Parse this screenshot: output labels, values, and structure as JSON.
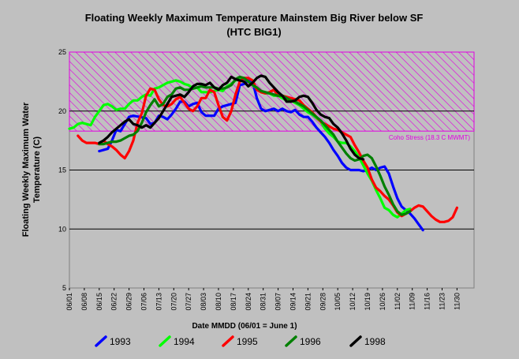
{
  "chart_data": {
    "type": "line",
    "title": "Floating Weekly Maximum Temperature Mainstem Big River below SF",
    "subtitle": "(HTC BIG1)",
    "ylabel_line1": "Floating Weekly Maximum Water",
    "ylabel_line2": "Temperature (C)",
    "xlabel": "Date MMDD (06/01 = June 1)",
    "ylim": [
      5,
      25
    ],
    "yticks": [
      "5",
      "10",
      "15",
      "20",
      "25"
    ],
    "xlim": [
      0,
      190
    ],
    "xticks": [
      "06/01",
      "06/08",
      "06/15",
      "06/22",
      "06/29",
      "07/06",
      "07/13",
      "07/20",
      "07/27",
      "08/03",
      "08/10",
      "08/17",
      "08/24",
      "08/31",
      "09/07",
      "09/14",
      "09/21",
      "09/28",
      "10/05",
      "10/12",
      "10/19",
      "10/26",
      "11/02",
      "11/09",
      "11/16",
      "11/23",
      "11/30"
    ],
    "x_unit": "days since 06/01",
    "stress_band": {
      "label": "Coho Stress (18.3 C MWMT)",
      "ymin": 18.3,
      "ymax": 25,
      "color": "#e000e0"
    },
    "reference_lines": [
      15,
      10,
      20
    ],
    "legend_position": "bottom",
    "series": [
      {
        "name": "1993",
        "color": "#0000ff",
        "x": [
          14,
          16,
          18,
          20,
          22,
          24,
          26,
          28,
          30,
          33,
          36,
          38,
          40,
          42,
          44,
          46,
          48,
          50,
          52,
          54,
          56,
          58,
          60,
          62,
          64,
          66,
          68,
          70,
          72,
          74,
          76,
          78,
          80,
          82,
          84,
          86,
          88,
          90,
          92,
          94,
          96,
          98,
          100,
          102,
          104,
          106,
          108,
          110,
          112,
          114,
          116,
          118,
          120,
          122,
          124,
          126,
          128,
          130,
          132,
          134,
          136,
          138,
          140,
          142,
          144,
          146,
          148,
          150,
          152,
          154,
          156,
          158,
          160,
          162,
          164,
          166
        ],
        "y": [
          16.6,
          16.7,
          16.8,
          17.5,
          18.4,
          18.3,
          18.9,
          19.5,
          19.6,
          19.5,
          19.4,
          18.9,
          19.0,
          19.6,
          19.5,
          19.3,
          19.7,
          20.2,
          20.8,
          20.8,
          20.4,
          20.6,
          20.7,
          19.9,
          19.6,
          19.6,
          19.6,
          20.2,
          20.4,
          20.5,
          20.6,
          20.7,
          22.2,
          22.3,
          22.6,
          22.5,
          21.1,
          20.2,
          20.0,
          20.1,
          20.2,
          20.0,
          20.2,
          20.0,
          19.9,
          20.1,
          19.7,
          19.5,
          19.5,
          19.1,
          18.6,
          18.2,
          17.8,
          17.3,
          16.7,
          16.2,
          15.6,
          15.2,
          15.0,
          15.0,
          15.0,
          14.9,
          15.0,
          15.2,
          15.0,
          15.2,
          15.3,
          14.7,
          13.6,
          12.6,
          11.9,
          11.6,
          11.3,
          10.9,
          10.4,
          9.9
        ]
      },
      {
        "name": "1994",
        "color": "#00ff00",
        "x": [
          0,
          2,
          4,
          6,
          8,
          10,
          12,
          14,
          16,
          18,
          20,
          22,
          24,
          26,
          28,
          30,
          32,
          34,
          36,
          38,
          40,
          42,
          44,
          46,
          48,
          50,
          52,
          54,
          56,
          58,
          60,
          62,
          64,
          66,
          68,
          70,
          72,
          74,
          76,
          78,
          80,
          82,
          84,
          86,
          88,
          90,
          92,
          94,
          96,
          98,
          100,
          102,
          104,
          106,
          108,
          110,
          112,
          114,
          116,
          118,
          120,
          122,
          124,
          126,
          128,
          130,
          132,
          134,
          136,
          138,
          140,
          142,
          144,
          146,
          148,
          150,
          152,
          154,
          156,
          158,
          160
        ],
        "y": [
          18.5,
          18.6,
          18.9,
          19.0,
          18.9,
          18.8,
          19.5,
          20.0,
          20.5,
          20.6,
          20.4,
          20.1,
          20.2,
          20.2,
          20.6,
          20.9,
          20.9,
          21.2,
          21.4,
          21.3,
          21.9,
          22.0,
          22.2,
          22.4,
          22.5,
          22.6,
          22.5,
          22.3,
          22.2,
          21.9,
          22.0,
          21.6,
          21.6,
          21.6,
          21.7,
          21.8,
          21.7,
          22.1,
          22.3,
          22.6,
          22.7,
          22.8,
          22.5,
          22.2,
          21.9,
          21.6,
          21.5,
          21.5,
          21.3,
          21.3,
          21.1,
          20.9,
          20.9,
          20.7,
          20.5,
          20.2,
          19.9,
          19.7,
          19.4,
          19.1,
          18.5,
          18.1,
          17.8,
          17.4,
          17.3,
          17.3,
          17.0,
          16.6,
          16.1,
          15.4,
          14.7,
          14.1,
          13.3,
          12.6,
          11.8,
          11.6,
          11.2,
          11.0,
          11.3,
          11.6,
          11.7
        ]
      },
      {
        "name": "1995",
        "color": "#ff0000",
        "x": [
          4,
          6,
          8,
          10,
          12,
          14,
          16,
          18,
          20,
          22,
          24,
          26,
          28,
          30,
          32,
          34,
          36,
          38,
          40,
          42,
          44,
          46,
          48,
          50,
          52,
          54,
          56,
          58,
          60,
          62,
          64,
          66,
          68,
          70,
          72,
          74,
          76,
          78,
          80,
          82,
          84,
          86,
          88,
          90,
          92,
          94,
          96,
          98,
          100,
          102,
          104,
          106,
          108,
          110,
          112,
          114,
          116,
          118,
          120,
          122,
          124,
          126,
          128,
          130,
          132,
          134,
          136,
          138,
          140,
          142,
          144,
          146,
          148,
          150,
          152,
          154,
          156,
          158,
          160,
          162,
          164,
          166,
          168,
          170,
          172,
          174,
          176,
          178,
          180,
          182
        ],
        "y": [
          17.9,
          17.5,
          17.3,
          17.3,
          17.3,
          17.2,
          17.5,
          17.2,
          17.0,
          16.7,
          16.3,
          16.0,
          16.6,
          17.5,
          19.0,
          19.8,
          21.3,
          21.9,
          21.8,
          21.0,
          20.5,
          20.4,
          20.6,
          21.0,
          21.2,
          20.7,
          20.2,
          20.0,
          20.4,
          21.1,
          21.1,
          21.8,
          21.6,
          20.5,
          19.5,
          19.2,
          20.0,
          21.4,
          22.5,
          22.8,
          22.8,
          22.6,
          21.8,
          21.6,
          21.5,
          21.6,
          21.8,
          21.3,
          21.3,
          21.2,
          21.1,
          21.0,
          20.9,
          20.5,
          20.2,
          19.9,
          19.5,
          19.1,
          18.9,
          18.7,
          18.5,
          18.4,
          18.2,
          18.0,
          17.8,
          17.1,
          16.5,
          15.8,
          15.2,
          14.2,
          13.5,
          13.2,
          12.8,
          12.5,
          12.0,
          11.4,
          11.1,
          11.3,
          11.5,
          11.8,
          12.0,
          11.9,
          11.5,
          11.1,
          10.8,
          10.6,
          10.6,
          10.7,
          11.0,
          11.8
        ]
      },
      {
        "name": "1996",
        "color": "#008000",
        "x": [
          14,
          16,
          18,
          20,
          22,
          24,
          26,
          28,
          30,
          32,
          34,
          36,
          38,
          40,
          42,
          44,
          46,
          48,
          50,
          52,
          54,
          56,
          58,
          60,
          62,
          64,
          66,
          68,
          70,
          72,
          74,
          76,
          78,
          80,
          82,
          84,
          86,
          88,
          90,
          92,
          94,
          96,
          98,
          100,
          102,
          104,
          106,
          108,
          110,
          112,
          114,
          116,
          118,
          120,
          122,
          124,
          126,
          128,
          130,
          132,
          134,
          136,
          138,
          140,
          142,
          144,
          146,
          148,
          150,
          152,
          154,
          156,
          158,
          160
        ],
        "y": [
          17.2,
          17.2,
          17.3,
          17.4,
          17.4,
          17.5,
          17.7,
          17.9,
          18.0,
          18.3,
          19.0,
          19.9,
          20.5,
          21.0,
          20.4,
          20.6,
          21.2,
          21.4,
          21.9,
          22.0,
          21.8,
          21.8,
          21.9,
          22.0,
          22.1,
          22.0,
          22.0,
          22.0,
          21.9,
          21.9,
          22.0,
          22.2,
          22.7,
          22.9,
          22.8,
          22.5,
          22.2,
          22.0,
          21.7,
          21.6,
          21.5,
          21.4,
          21.3,
          21.3,
          21.1,
          20.9,
          20.8,
          20.6,
          20.4,
          20.1,
          19.8,
          19.5,
          19.2,
          18.8,
          18.4,
          18.0,
          17.4,
          16.9,
          16.4,
          16.0,
          15.8,
          15.9,
          16.2,
          16.3,
          16.0,
          15.3,
          14.5,
          13.6,
          12.9,
          12.1,
          11.5,
          11.2,
          11.3,
          11.5
        ]
      },
      {
        "name": "1998",
        "color": "#000000",
        "x": [
          14,
          16,
          18,
          20,
          22,
          24,
          26,
          28,
          30,
          32,
          34,
          36,
          38,
          40,
          42,
          44,
          46,
          48,
          50,
          52,
          54,
          56,
          58,
          60,
          62,
          64,
          66,
          68,
          70,
          72,
          74,
          76,
          78,
          80,
          82,
          84,
          86,
          88,
          90,
          92,
          94,
          96,
          98,
          100,
          102,
          104,
          106,
          108,
          110,
          112,
          114,
          116,
          118,
          120,
          122,
          124,
          126,
          128,
          130,
          132,
          134,
          136,
          138
        ],
        "y": [
          17.3,
          17.5,
          17.8,
          18.2,
          18.5,
          18.8,
          19.1,
          19.3,
          18.9,
          18.8,
          18.6,
          18.8,
          18.6,
          19.0,
          19.4,
          20.0,
          20.6,
          21.2,
          21.3,
          21.4,
          21.2,
          21.6,
          22.1,
          22.3,
          22.3,
          22.2,
          22.4,
          22.0,
          21.8,
          22.2,
          22.4,
          22.9,
          22.7,
          22.6,
          22.5,
          22.1,
          22.4,
          22.8,
          23.0,
          22.9,
          22.4,
          22.0,
          21.6,
          21.3,
          20.8,
          20.8,
          20.9,
          21.2,
          21.3,
          21.2,
          20.7,
          20.1,
          19.7,
          19.5,
          19.4,
          18.9,
          18.6,
          18.1,
          17.5,
          16.8,
          16.3,
          16.0,
          15.9
        ]
      }
    ]
  }
}
